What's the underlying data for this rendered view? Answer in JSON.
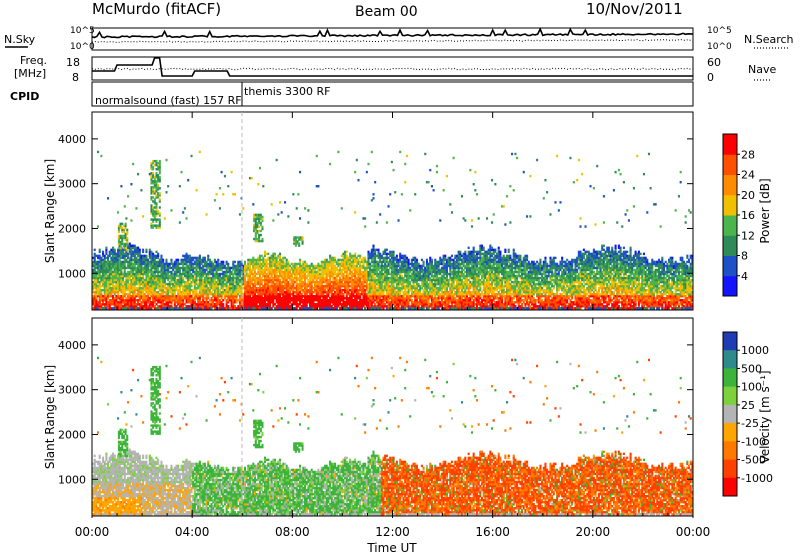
{
  "header": {
    "station": "McMurdo (fitACF)",
    "beam": "Beam 00",
    "date": "10/Nov/2011"
  },
  "sky_panel": {
    "left_label": "N.Sky",
    "right_label": "N.Search",
    "right_ticks": [
      "10^5",
      "10^0"
    ],
    "left_ticks": [
      "10^5",
      "10^0"
    ]
  },
  "freq_panel": {
    "left_label_1": "Freq.",
    "left_label_2": "[MHz]",
    "left_ticks": [
      "18",
      "8"
    ],
    "right_label": "Nave",
    "right_ticks": [
      "60",
      "0"
    ]
  },
  "cpid": {
    "label": "CPID",
    "mode_1": "normalsound (fast) 157 RF",
    "mode_2": "themis 3300 RF"
  },
  "chart_data": [
    {
      "type": "heatmap",
      "name": "power",
      "ylabel": "Slant Range [km]",
      "yticks": [
        1000,
        2000,
        3000,
        4000
      ],
      "ylim": [
        180,
        4600
      ],
      "colorbar_label": "Power [dB]",
      "colorbar_ticks": [
        "4",
        "8",
        "12",
        "16",
        "20",
        "24",
        "28"
      ],
      "colors": [
        "#1414ff",
        "#1e50c8",
        "#2e8b57",
        "#4cb44c",
        "#f0c000",
        "#ff8c00",
        "#ff5000",
        "#ff0000"
      ]
    },
    {
      "type": "heatmap",
      "name": "velocity",
      "ylabel": "Slant Range [km]",
      "yticks": [
        1000,
        2000,
        3000,
        4000
      ],
      "ylim": [
        180,
        4600
      ],
      "colorbar_label": "Velocity [m s⁻¹]",
      "colorbar_ticks": [
        "1000",
        "500",
        "100",
        "25",
        "-25",
        "-100",
        "-500",
        "-1000"
      ],
      "colors": [
        "#1e3cb4",
        "#2e8b8b",
        "#3cb43c",
        "#7cd23c",
        "#b4b4b4",
        "#ffa500",
        "#ff7800",
        "#ff4000",
        "#ff0000"
      ]
    }
  ],
  "xaxis": {
    "label": "Time UT",
    "ticks": [
      "00:00",
      "04:00",
      "08:00",
      "12:00",
      "16:00",
      "20:00",
      "00:00"
    ]
  }
}
